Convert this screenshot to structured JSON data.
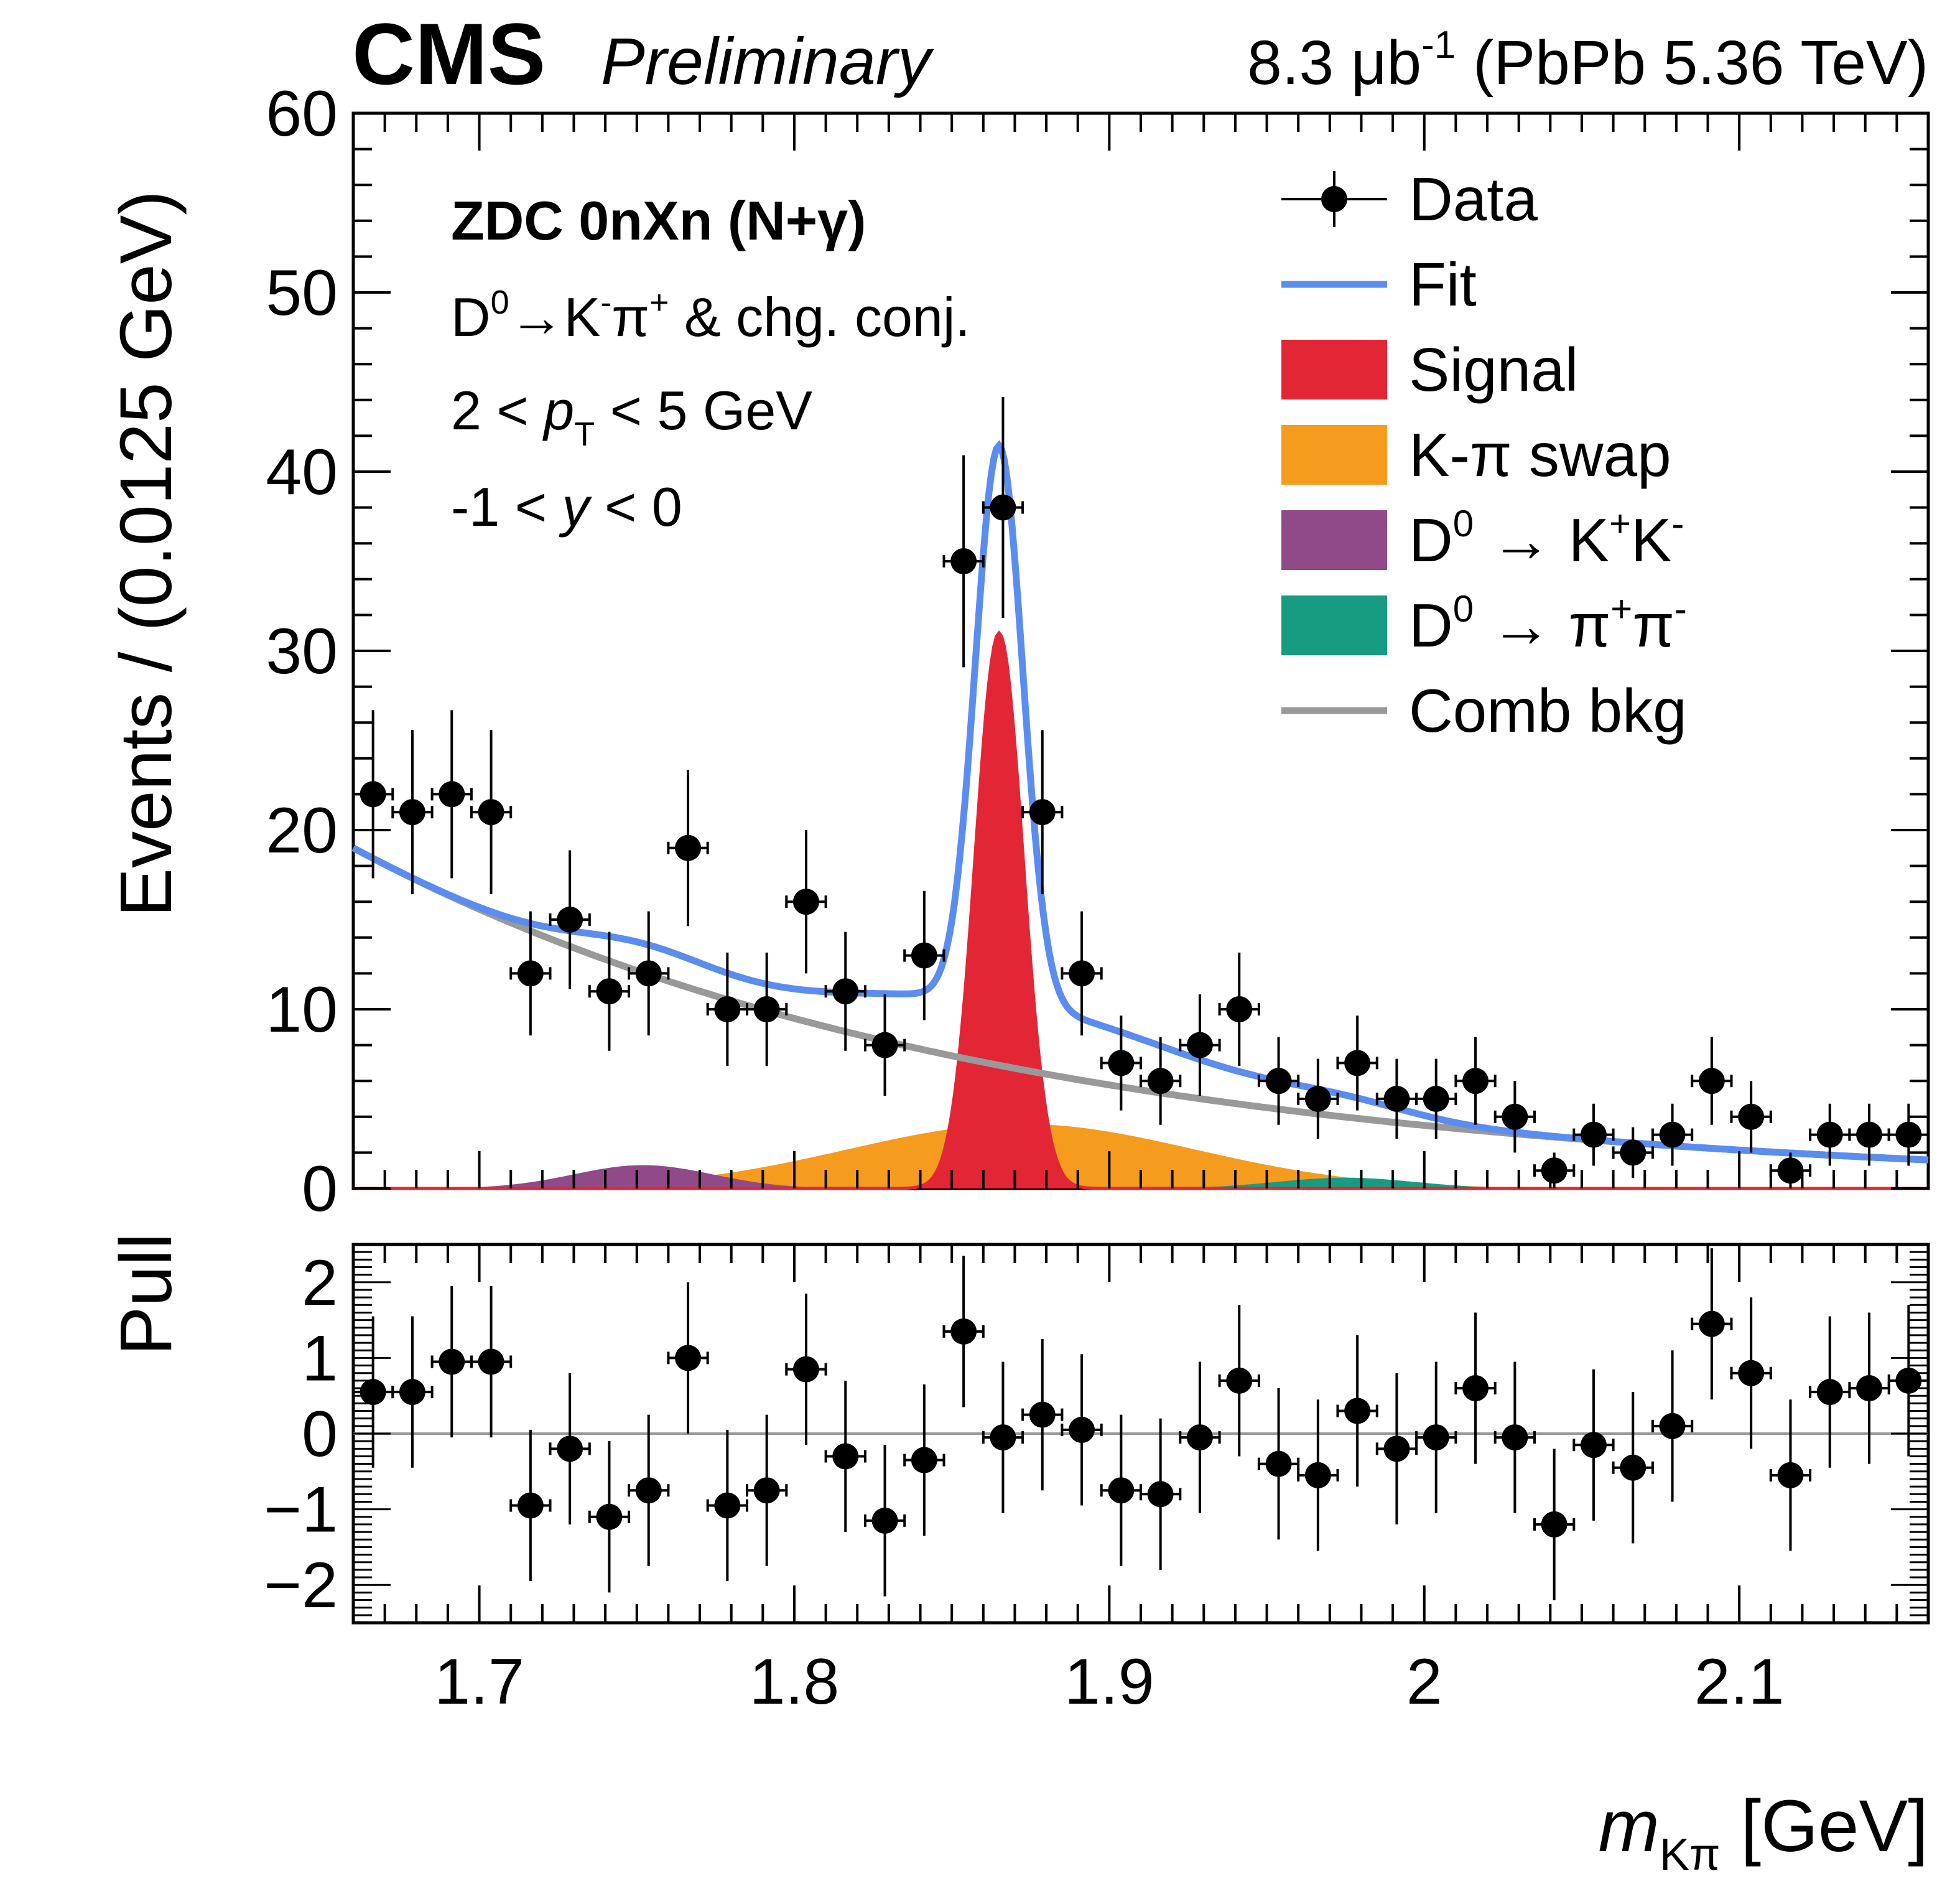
{
  "header": {
    "experiment": "CMS",
    "status": "Preliminary",
    "lumi_value": "8.3 μb",
    "lumi_exp": "-1",
    "collision": " (PbPb 5.36 TeV)"
  },
  "annotations": {
    "category": "ZDC 0nXn (N+γ)",
    "decay_d0": "D",
    "decay_d0_sup": "0",
    "decay_arrow_k": "→K",
    "decay_k_sup": "-",
    "decay_pi": "π",
    "decay_pi_sup": "+",
    "decay_tail": " & chg. conj.",
    "pt_pre": "2 < ",
    "pt_var": "p",
    "pt_sub": "T",
    "pt_post": " < 5 GeV",
    "y_pre": "-1 < ",
    "y_var": "y",
    "y_post": " < 0"
  },
  "legend": {
    "position": "top-right",
    "entries": [
      {
        "label": "Data",
        "kind": "marker",
        "color": "#000000"
      },
      {
        "label": "Fit",
        "kind": "line",
        "color": "#5b8def"
      },
      {
        "label": "Signal",
        "kind": "box",
        "color": "#e32636"
      },
      {
        "label": "K-π swap",
        "kind": "box",
        "color": "#f59c1f"
      },
      {
        "label": "D",
        "sup": "0",
        "tail": " → K",
        "sup2": "+",
        "tail2": "K",
        "sup3": "-",
        "kind": "box",
        "color": "#904a8a"
      },
      {
        "label": "D",
        "sup": "0",
        "tail": " → π",
        "sup2": "+",
        "tail2": "π",
        "sup3": "-",
        "kind": "box",
        "color": "#179c82"
      },
      {
        "label": "Comb bkg",
        "kind": "line",
        "color": "#999999"
      }
    ]
  },
  "axes": {
    "ylabel_main": "Events / (0.0125 GeV)",
    "ylabel_pull": "Pull",
    "xlabel_var": "m",
    "xlabel_sub": "Kπ",
    "xlabel_unit": " [GeV]",
    "x_ticks": [
      "1.7",
      "1.8",
      "1.9",
      "2",
      "2.1"
    ],
    "y_ticks_main": [
      "0",
      "10",
      "20",
      "30",
      "40",
      "50",
      "60"
    ],
    "y_ticks_pull": [
      "−2",
      "−1",
      "0",
      "1",
      "2"
    ]
  },
  "chart_data": {
    "type": "scatter",
    "xlim": [
      1.66,
      2.16
    ],
    "ylim_main": [
      0,
      60
    ],
    "ylim_pull": [
      -2.5,
      2.5
    ],
    "bin_width": 0.0125,
    "x": [
      1.66625,
      1.67875,
      1.69125,
      1.70375,
      1.71625,
      1.72875,
      1.74125,
      1.75375,
      1.76625,
      1.77875,
      1.79125,
      1.80375,
      1.81625,
      1.82875,
      1.84125,
      1.85375,
      1.86625,
      1.87875,
      1.89125,
      1.90375,
      1.91625,
      1.92875,
      1.94125,
      1.95375,
      1.96625,
      1.97875,
      1.99125,
      2.00375,
      2.01625,
      2.02875,
      2.04125,
      2.05375,
      2.06625,
      2.07875,
      2.09125,
      2.10375,
      2.11625,
      2.12875,
      2.14125,
      2.15375
    ],
    "counts": [
      22,
      21,
      22,
      21,
      12,
      15,
      11,
      12,
      19,
      10,
      10,
      16,
      11,
      8,
      13,
      35,
      38,
      21,
      12,
      7,
      6,
      8,
      10,
      6,
      5,
      7,
      5,
      5,
      6,
      4,
      1,
      3,
      2,
      3,
      6,
      4,
      1,
      3,
      3,
      3
    ],
    "pull": [
      0.55,
      0.55,
      0.95,
      0.95,
      -0.95,
      -0.2,
      -1.1,
      -0.75,
      1.0,
      -0.95,
      -0.75,
      0.85,
      -0.3,
      -1.15,
      -0.35,
      1.35,
      -0.05,
      0.25,
      0.05,
      -0.75,
      -0.8,
      -0.05,
      0.7,
      -0.4,
      -0.55,
      0.3,
      -0.2,
      -0.05,
      0.6,
      -0.05,
      -1.2,
      -0.15,
      -0.45,
      0.1,
      1.45,
      0.8,
      -0.55,
      0.55,
      0.6,
      0.7
    ],
    "series": [
      {
        "name": "Fit",
        "role": "fit"
      },
      {
        "name": "Signal",
        "role": "signal",
        "mean": 1.865,
        "sigma": 0.0075,
        "amplitude": 31.0
      },
      {
        "name": "K-π swap",
        "role": "swap",
        "mean": 1.872,
        "sigma": 0.055,
        "amplitude": 3.6
      },
      {
        "name": "D0 → K+K-",
        "role": "kk",
        "mean": 1.752,
        "sigma": 0.022,
        "amplitude": 1.3
      },
      {
        "name": "D0 → π+π-",
        "role": "pipi",
        "mean": 1.975,
        "sigma": 0.022,
        "amplitude": 0.6
      },
      {
        "name": "Comb bkg",
        "role": "comb",
        "norm": 19.0,
        "slope": -4.96
      }
    ]
  }
}
